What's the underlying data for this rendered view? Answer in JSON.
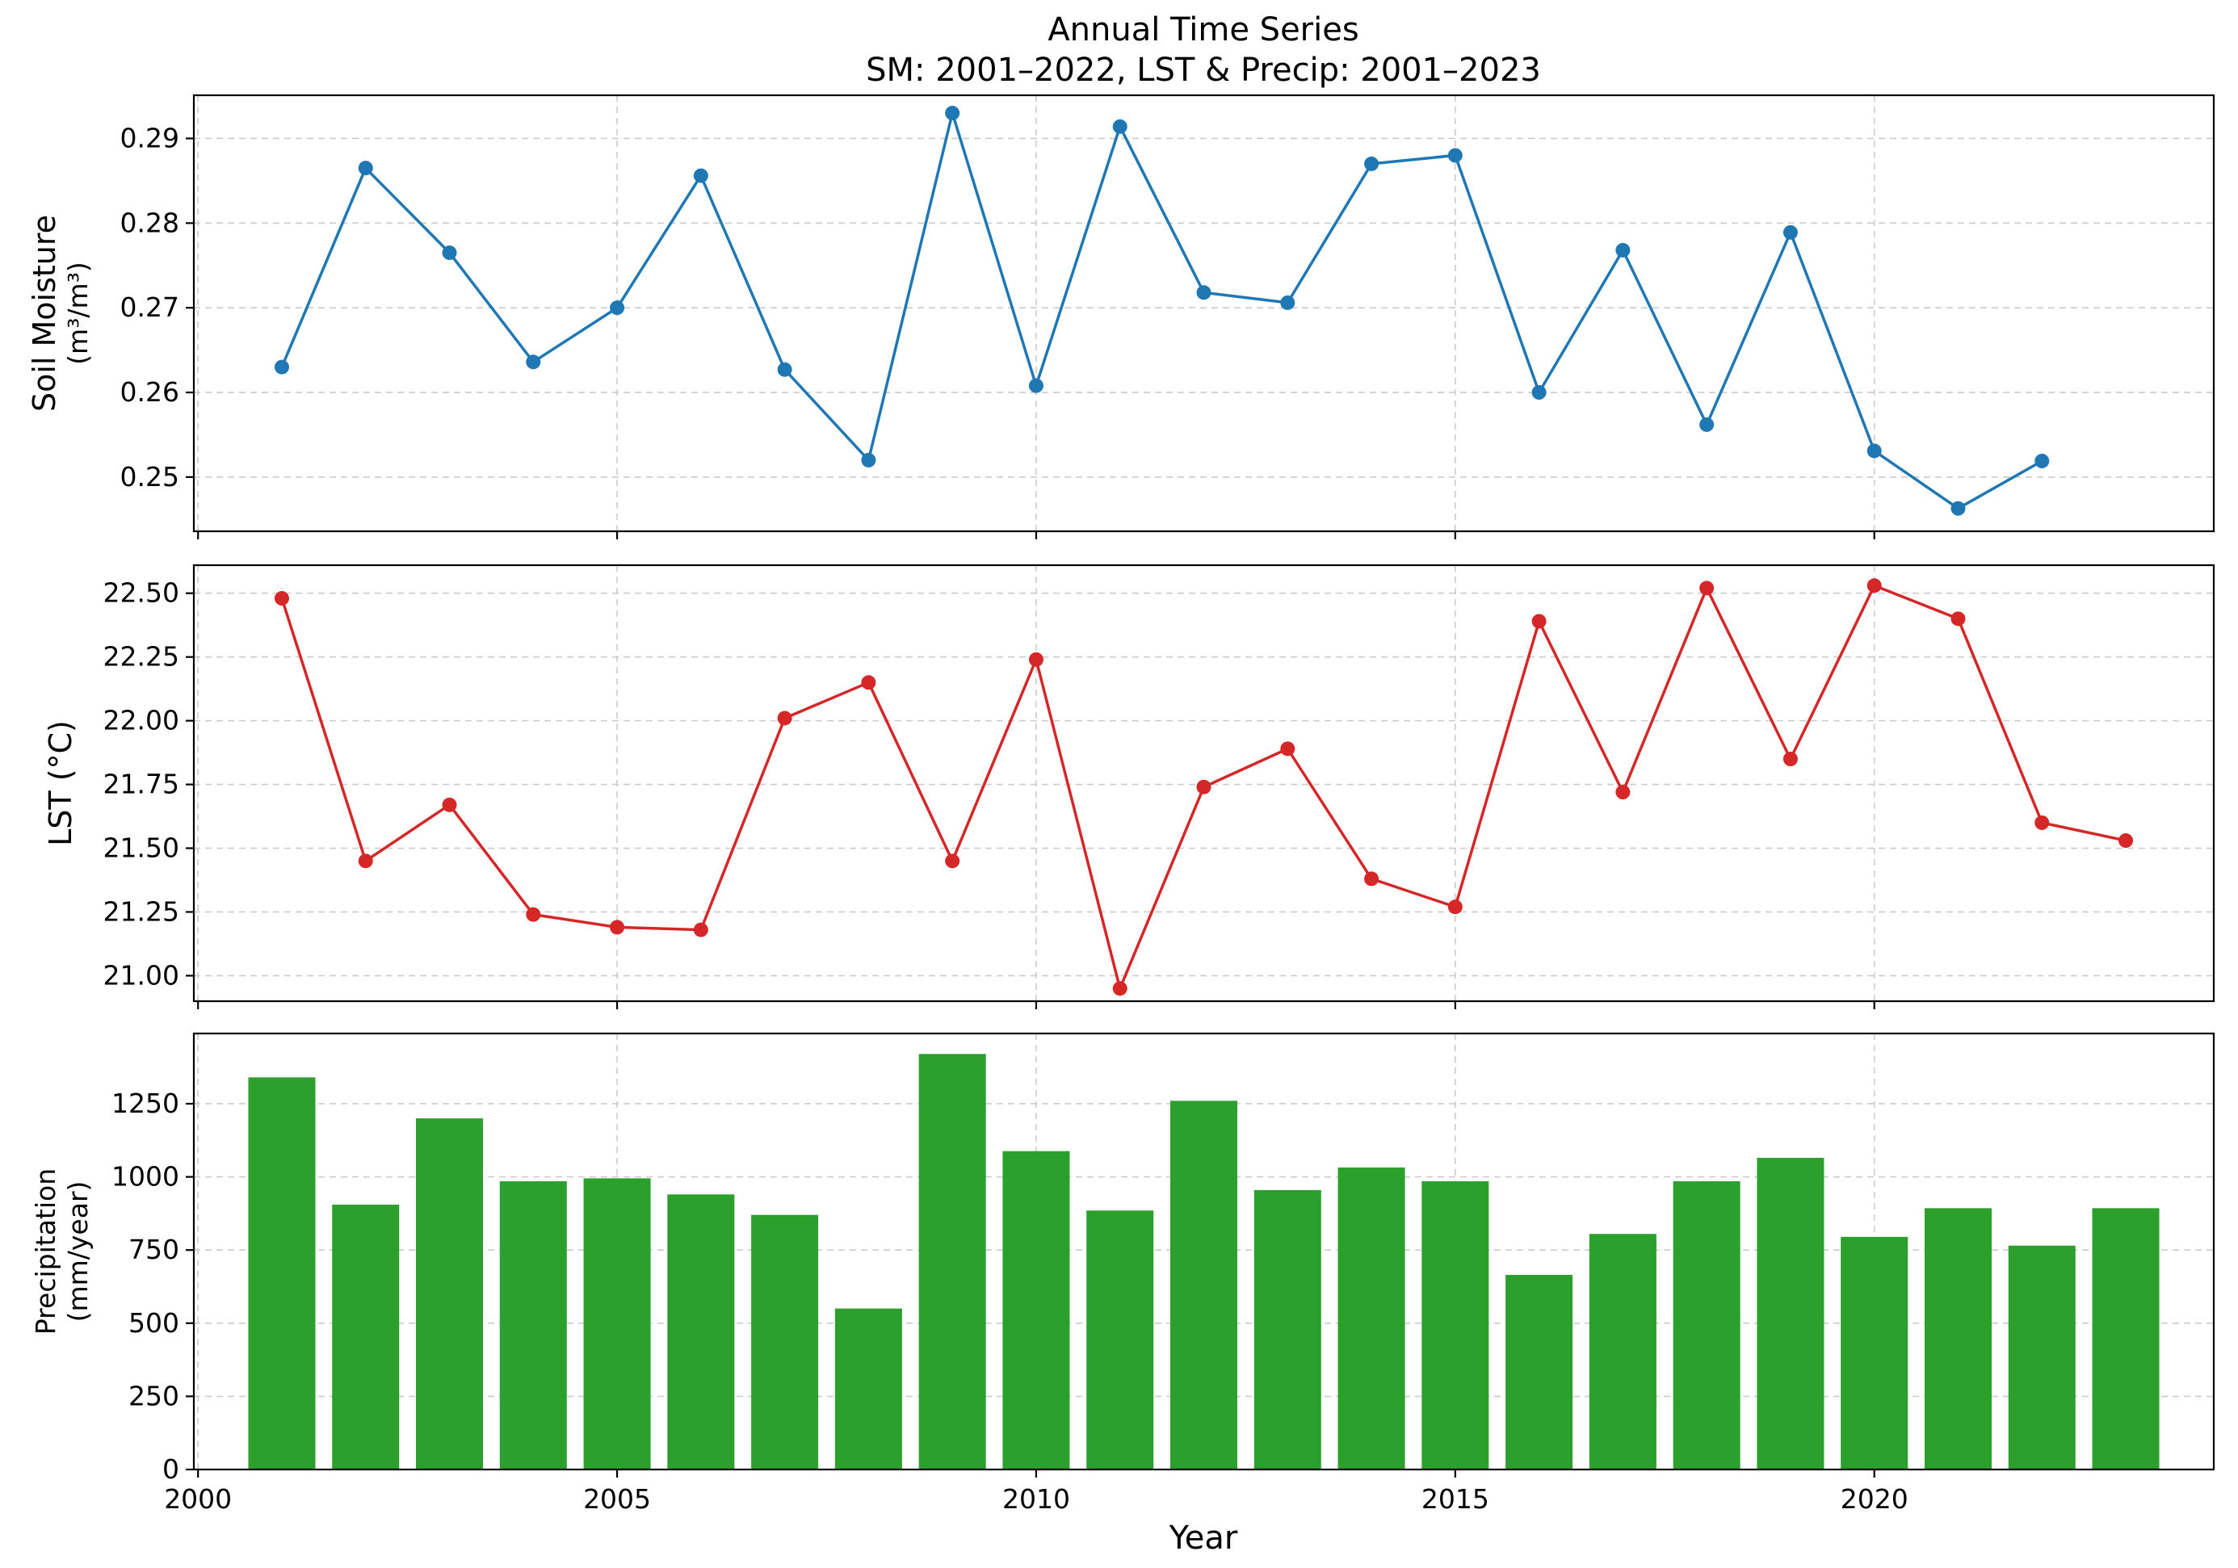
{
  "figure": {
    "title_line1": "Annual Time Series",
    "title_line2": "SM: 2001–2022, LST & Precip: 2001–2023",
    "xlabel": "Year"
  },
  "chart_data": [
    {
      "type": "line",
      "ylabel_line1": "Soil Moisture",
      "ylabel_line2": "(m³/m³)",
      "color": "#1f77b4",
      "xlim": [
        1999.95,
        2024.05
      ],
      "ylim": [
        0.2436,
        0.2951
      ],
      "grid": true,
      "xticks": [
        2000,
        2005,
        2010,
        2015,
        2020
      ],
      "show_xtick_labels": false,
      "yticks": [
        0.25,
        0.26,
        0.27,
        0.28,
        0.29
      ],
      "ytick_labels": [
        "0.25",
        "0.26",
        "0.27",
        "0.28",
        "0.29"
      ],
      "x": [
        2001,
        2002,
        2003,
        2004,
        2005,
        2006,
        2007,
        2008,
        2009,
        2010,
        2011,
        2012,
        2013,
        2014,
        2015,
        2016,
        2017,
        2018,
        2019,
        2020,
        2021,
        2022
      ],
      "y": [
        0.263,
        0.2865,
        0.2765,
        0.2636,
        0.27,
        0.2856,
        0.2627,
        0.252,
        0.293,
        0.2608,
        0.2914,
        0.2718,
        0.2706,
        0.287,
        0.288,
        0.26,
        0.2768,
        0.2562,
        0.2789,
        0.2531,
        0.2463,
        0.2519
      ]
    },
    {
      "type": "line",
      "ylabel_line1": "LST (°C)",
      "color": "#d62728",
      "xlim": [
        1999.95,
        2024.05
      ],
      "ylim": [
        20.9,
        22.61
      ],
      "grid": true,
      "xticks": [
        2000,
        2005,
        2010,
        2015,
        2020
      ],
      "show_xtick_labels": false,
      "yticks": [
        21.0,
        21.25,
        21.5,
        21.75,
        22.0,
        22.25,
        22.5
      ],
      "ytick_labels": [
        "21.00",
        "21.25",
        "21.50",
        "21.75",
        "22.00",
        "22.25",
        "22.50"
      ],
      "x": [
        2001,
        2002,
        2003,
        2004,
        2005,
        2006,
        2007,
        2008,
        2009,
        2010,
        2011,
        2012,
        2013,
        2014,
        2015,
        2016,
        2017,
        2018,
        2019,
        2020,
        2021,
        2022,
        2023
      ],
      "y": [
        22.48,
        21.45,
        21.67,
        21.24,
        21.19,
        21.18,
        22.01,
        22.15,
        21.45,
        22.24,
        20.95,
        21.74,
        21.89,
        21.38,
        21.27,
        22.39,
        21.72,
        22.52,
        21.85,
        22.53,
        22.4,
        21.6,
        21.53
      ]
    },
    {
      "type": "bar",
      "ylabel_line1": "Precipitation",
      "ylabel_line2": "(mm/year)",
      "color": "#2ca02c",
      "xlim": [
        1999.95,
        2024.05
      ],
      "ylim": [
        0,
        1490
      ],
      "grid": true,
      "xticks": [
        2000,
        2005,
        2010,
        2015,
        2020
      ],
      "xtick_labels": [
        "2000",
        "2005",
        "2010",
        "2015",
        "2020"
      ],
      "show_xtick_labels": true,
      "yticks": [
        0,
        250,
        500,
        750,
        1000,
        1250
      ],
      "ytick_labels": [
        "0",
        "250",
        "500",
        "750",
        "1000",
        "1250"
      ],
      "x": [
        2001,
        2002,
        2003,
        2004,
        2005,
        2006,
        2007,
        2008,
        2009,
        2010,
        2011,
        2012,
        2013,
        2014,
        2015,
        2016,
        2017,
        2018,
        2019,
        2020,
        2021,
        2022,
        2023
      ],
      "values": [
        1340,
        905,
        1200,
        985,
        995,
        940,
        870,
        550,
        1420,
        1088,
        885,
        1260,
        955,
        1032,
        985,
        665,
        805,
        985,
        1065,
        795,
        893,
        765,
        893
      ]
    }
  ]
}
